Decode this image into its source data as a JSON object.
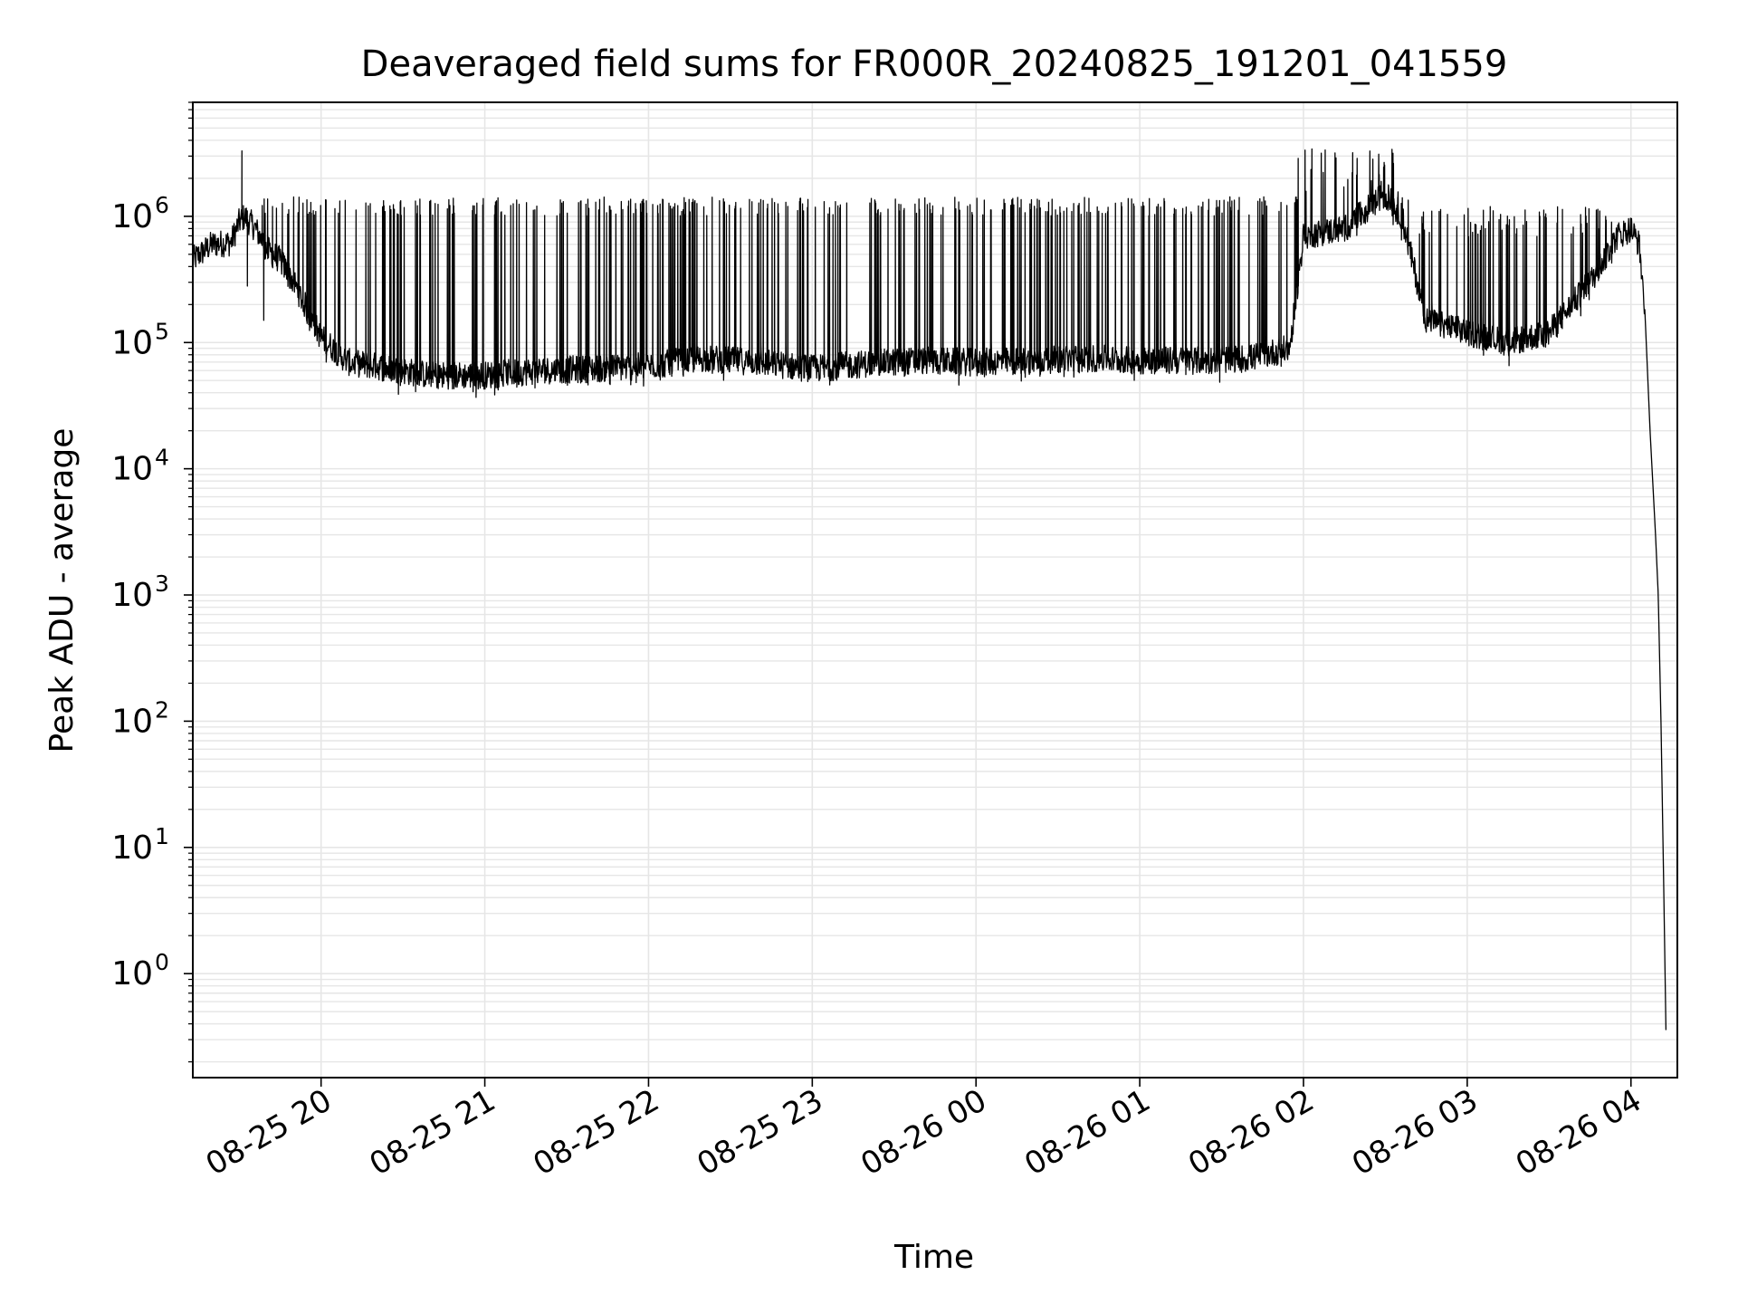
{
  "chart_data": {
    "type": "line",
    "title": "Deaveraged field sums for FR000R_20240825_191201_041559",
    "xlabel": "Time",
    "ylabel": "Peak ADU - average",
    "yscale": "log",
    "ylim": [
      0.15,
      8000000
    ],
    "xlim": [
      "08-25 19:13",
      "08-26 04:17"
    ],
    "grid": true,
    "legend": "none",
    "line_color": "#000000",
    "grid_color": "#e6e6e6",
    "x_ticks": [
      {
        "t": "08-25 20:00",
        "label": "08-25 20"
      },
      {
        "t": "08-25 21:00",
        "label": "08-25 21"
      },
      {
        "t": "08-25 22:00",
        "label": "08-25 22"
      },
      {
        "t": "08-25 23:00",
        "label": "08-25 23"
      },
      {
        "t": "08-26 00:00",
        "label": "08-26 00"
      },
      {
        "t": "08-26 01:00",
        "label": "08-26 01"
      },
      {
        "t": "08-26 02:00",
        "label": "08-26 02"
      },
      {
        "t": "08-26 03:00",
        "label": "08-26 03"
      },
      {
        "t": "08-26 04:00",
        "label": "08-26 04"
      }
    ],
    "y_ticks": [
      {
        "value": 1,
        "base": "10",
        "exp": "0"
      },
      {
        "value": 10,
        "base": "10",
        "exp": "1"
      },
      {
        "value": 100,
        "base": "10",
        "exp": "2"
      },
      {
        "value": 1000,
        "base": "10",
        "exp": "3"
      },
      {
        "value": 10000,
        "base": "10",
        "exp": "4"
      },
      {
        "value": 100000,
        "base": "10",
        "exp": "5"
      },
      {
        "value": 1000000,
        "base": "10",
        "exp": "6"
      }
    ],
    "series": [
      {
        "x": [
          "08-25 19:13",
          "08-25 19:20",
          "08-25 19:27",
          "08-25 19:30",
          "08-25 19:32",
          "08-25 19:36",
          "08-25 19:40",
          "08-25 19:45",
          "08-25 19:50",
          "08-25 19:55",
          "08-25 20:00",
          "08-25 20:10",
          "08-25 20:20",
          "08-25 20:40",
          "08-25 21:00",
          "08-25 21:20",
          "08-25 21:40",
          "08-25 22:00",
          "08-25 22:20",
          "08-25 22:40",
          "08-25 23:00",
          "08-25 23:20",
          "08-25 23:40",
          "08-26 00:00",
          "08-26 00:20",
          "08-26 00:40",
          "08-26 01:00",
          "08-26 01:20",
          "08-26 01:40",
          "08-26 01:55",
          "08-26 02:00",
          "08-26 02:15",
          "08-26 02:30",
          "08-26 02:36",
          "08-26 02:45",
          "08-26 03:00",
          "08-26 03:15",
          "08-26 03:30",
          "08-26 03:45",
          "08-26 03:55",
          "08-26 04:00",
          "08-26 04:03",
          "08-26 04:05",
          "08-26 04:07",
          "08-26 04:09",
          "08-26 04:10",
          "08-26 04:11",
          "08-26 04:12",
          "08-26 04:13"
        ],
        "y": [
          450000,
          600000,
          620000,
          900000,
          1000000,
          800000,
          550000,
          450000,
          300000,
          180000,
          110000,
          70000,
          65000,
          55000,
          55000,
          60000,
          62000,
          65000,
          75000,
          70000,
          62000,
          68000,
          72000,
          70000,
          72000,
          75000,
          72000,
          72000,
          75000,
          90000,
          700000,
          800000,
          1500000,
          1000000,
          150000,
          120000,
          100000,
          120000,
          300000,
          700000,
          800000,
          600000,
          200000,
          20000,
          3000,
          1000,
          100,
          5,
          0.2
        ]
      }
    ],
    "spikes": {
      "x_range": [
        "08-25 19:38",
        "08-26 03:53"
      ],
      "count": 430,
      "typical_peak": 1200000,
      "max_peak": 3500000,
      "notable": [
        {
          "x": "08-25 19:31",
          "peak": 3300000
        },
        {
          "x": "08-25 19:33",
          "peak": 280000
        },
        {
          "x": "08-25 19:39",
          "peak": 150000
        }
      ]
    }
  }
}
